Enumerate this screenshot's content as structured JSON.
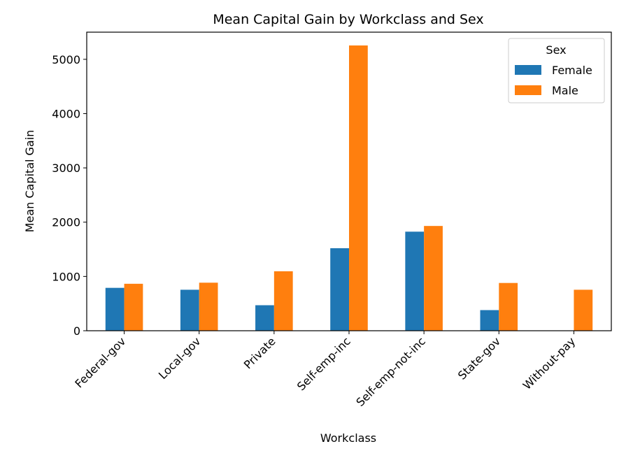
{
  "chart_data": {
    "type": "bar",
    "title": "Mean Capital Gain by Workclass and Sex",
    "xlabel": "Workclass",
    "ylabel": "Mean Capital Gain",
    "categories": [
      "Federal-gov",
      "Local-gov",
      "Private",
      "Self-emp-inc",
      "Self-emp-not-inc",
      "State-gov",
      "Without-pay"
    ],
    "series": [
      {
        "name": "Female",
        "color": "#1f77b4",
        "values": [
          790,
          755,
          470,
          1520,
          1825,
          380,
          0
        ]
      },
      {
        "name": "Male",
        "color": "#ff7f0e",
        "values": [
          865,
          885,
          1095,
          5255,
          1930,
          880,
          755
        ]
      }
    ],
    "ylim": [
      0,
      5500
    ],
    "yticks": [
      0,
      1000,
      2000,
      3000,
      4000,
      5000
    ],
    "legend": {
      "title": "Sex",
      "placement": "top-right"
    },
    "grid": false
  }
}
